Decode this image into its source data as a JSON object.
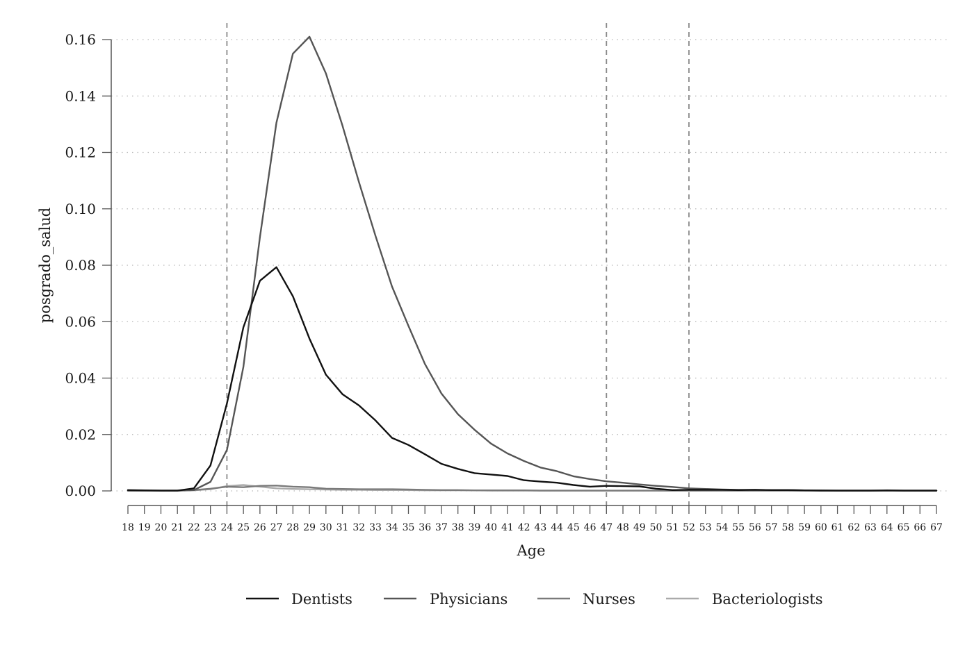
{
  "chart_data": {
    "type": "line",
    "xlabel": "Age",
    "ylabel": "posgrado_salud",
    "xlim": [
      18,
      67
    ],
    "ylim": [
      0,
      0.16
    ],
    "x": [
      18,
      19,
      20,
      21,
      22,
      23,
      24,
      25,
      26,
      27,
      28,
      29,
      30,
      31,
      32,
      33,
      34,
      35,
      36,
      37,
      38,
      39,
      40,
      41,
      42,
      43,
      44,
      45,
      46,
      47,
      48,
      49,
      50,
      51,
      52,
      53,
      54,
      55,
      56,
      57,
      58,
      59,
      60,
      61,
      62,
      63,
      64,
      65,
      66,
      67
    ],
    "x_ticks": [
      "18",
      "19",
      "20",
      "21",
      "22",
      "23",
      "24",
      "25",
      "26",
      "27",
      "28",
      "29",
      "30",
      "31",
      "32",
      "33",
      "34",
      "35",
      "36",
      "37",
      "38",
      "39",
      "40",
      "41",
      "42",
      "43",
      "44",
      "45",
      "46",
      "47",
      "48",
      "49",
      "50",
      "51",
      "52",
      "53",
      "54",
      "55",
      "56",
      "57",
      "58",
      "59",
      "60",
      "61",
      "62",
      "63",
      "64",
      "65",
      "66",
      "67"
    ],
    "y_ticks": [
      {
        "value": 0.0,
        "label": "0.00"
      },
      {
        "value": 0.02,
        "label": "0.02"
      },
      {
        "value": 0.04,
        "label": "0.04"
      },
      {
        "value": 0.06,
        "label": "0.06"
      },
      {
        "value": 0.08,
        "label": "0.08"
      },
      {
        "value": 0.1,
        "label": "0.10"
      },
      {
        "value": 0.12,
        "label": "0.12"
      },
      {
        "value": 0.14,
        "label": "0.14"
      },
      {
        "value": 0.16,
        "label": "0.16"
      }
    ],
    "reference_lines_x": [
      24,
      47,
      52
    ],
    "grid": "horizontal-dotted",
    "legend_position": "bottom",
    "series": [
      {
        "name": "Dentists",
        "color": "#111111",
        "values": [
          0.0003,
          0.0002,
          0.0001,
          0.0001,
          0.0009,
          0.009,
          0.031,
          0.058,
          0.0745,
          0.0793,
          0.069,
          0.054,
          0.0412,
          0.0343,
          0.0303,
          0.025,
          0.0188,
          0.0163,
          0.013,
          0.0096,
          0.0078,
          0.0063,
          0.0058,
          0.0053,
          0.0038,
          0.0033,
          0.0029,
          0.0021,
          0.0015,
          0.0018,
          0.0017,
          0.0016,
          0.0008,
          0.0003,
          0.0004,
          0.0004,
          0.0004,
          0.0003,
          0.0004,
          0.0003,
          0.0003,
          0.0002,
          0.0001,
          0.0001,
          0.0001,
          0.0001,
          0.0002,
          0.0001,
          0.0001,
          0.0001
        ]
      },
      {
        "name": "Physicians",
        "color": "#555555",
        "values": [
          0.0001,
          0.0001,
          0.0001,
          0.0001,
          0.0003,
          0.0032,
          0.0145,
          0.044,
          0.09,
          0.1305,
          0.155,
          0.161,
          0.148,
          0.1295,
          0.1095,
          0.0905,
          0.0725,
          0.0585,
          0.045,
          0.0345,
          0.0272,
          0.0217,
          0.0168,
          0.0133,
          0.0106,
          0.0083,
          0.007,
          0.0052,
          0.0042,
          0.0034,
          0.0029,
          0.0023,
          0.0018,
          0.0014,
          0.0009,
          0.0007,
          0.0005,
          0.0004,
          0.0004,
          0.0003,
          0.0003,
          0.0002,
          0.0002,
          0.0001,
          0.0001,
          0.0001,
          0.0001,
          0.0001,
          0.0001,
          0.0001
        ]
      },
      {
        "name": "Nurses",
        "color": "#7a7a7a",
        "values": [
          0.0001,
          0.0001,
          0.0001,
          0.0001,
          0.0003,
          0.0008,
          0.0015,
          0.0013,
          0.0018,
          0.0019,
          0.0015,
          0.0013,
          0.0008,
          0.0007,
          0.0006,
          0.0006,
          0.0006,
          0.0005,
          0.0004,
          0.0003,
          0.0003,
          0.0002,
          0.0002,
          0.0002,
          0.0002,
          0.0001,
          0.0001,
          0.0001,
          0.0001,
          0.0001,
          0.0001,
          0.0001,
          0.0001,
          0.0001,
          0.0001,
          0.0001,
          0.0001,
          0.0001,
          0.0001,
          0.0001,
          0.0001,
          0.0001,
          0.0001,
          0.0001,
          0.0001,
          0.0001,
          0.0001,
          0.0001,
          0.0001,
          0.0001
        ]
      },
      {
        "name": "Bacteriologists",
        "color": "#aaaaaa",
        "values": [
          0.0001,
          0.0001,
          0.0001,
          0.0001,
          0.0002,
          0.0006,
          0.0017,
          0.0021,
          0.0015,
          0.0009,
          0.0007,
          0.0006,
          0.0005,
          0.0004,
          0.0004,
          0.0003,
          0.0003,
          0.0003,
          0.0002,
          0.0002,
          0.0002,
          0.0002,
          0.0001,
          0.0001,
          0.0001,
          0.0001,
          0.0001,
          0.0001,
          0.0001,
          0.0001,
          0.0001,
          0.0001,
          0.0001,
          0.0001,
          0.0001,
          0.0001,
          0.0001,
          0.0001,
          0.0001,
          0.0001,
          0.0001,
          0.0001,
          0.0001,
          0.0001,
          0.0001,
          0.0001,
          0.0001,
          0.0001,
          0.0001,
          0.0001
        ]
      }
    ]
  }
}
